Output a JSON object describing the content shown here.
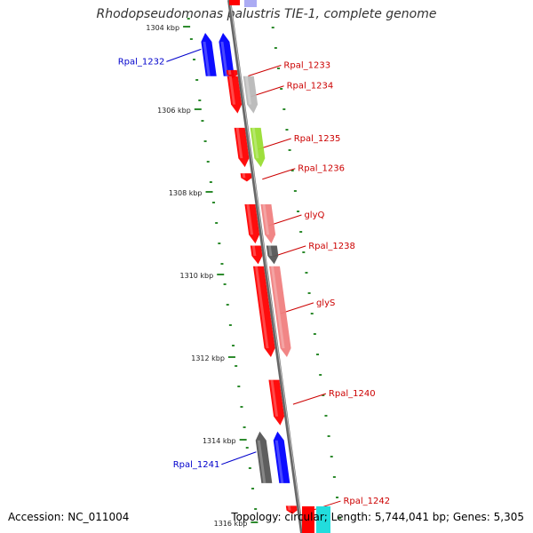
{
  "title": "Rhodopseudomonas palustris TIE-1, complete genome",
  "footer": {
    "accession": "Accession: NC_011004",
    "summary": "Topology: circular; Length: 5,744,041 bp; Genes: 5,305"
  },
  "colors": {
    "backbone": "#888888",
    "tick": "#2e8b2e",
    "forward_label": "#0000cc",
    "reverse_label": "#cc0000",
    "red": "#ff0000",
    "pink": "#f08080",
    "blue": "#0000ff",
    "gray": "#555555",
    "lightgray": "#b8b8b8",
    "green": "#99dd33",
    "cyan": "#22dddd",
    "lavender": "#8888ee"
  },
  "scale": {
    "start_kbp": 1304,
    "end_kbp": 1316,
    "step_kbp": 2,
    "unit": "kbp"
  },
  "scale_labels": [
    "1304 kbp",
    "1306 kbp",
    "1308 kbp",
    "1310 kbp",
    "1312 kbp",
    "1314 kbp",
    "1316 kbp"
  ],
  "genes": [
    {
      "id": "Rpal_1232",
      "label": "Rpal_1232",
      "strand": "+",
      "start_kbp": 1304.15,
      "end_kbp": 1305.2,
      "lane": "outer",
      "color": "blue",
      "show_label": true
    },
    {
      "id": "Rpal_1232b",
      "label": "",
      "strand": "+",
      "start_kbp": 1304.15,
      "end_kbp": 1305.2,
      "lane": "inner",
      "color": "blue",
      "show_label": false
    },
    {
      "id": "Rpal_1233",
      "label": "Rpal_1233",
      "strand": "-",
      "start_kbp": 1305.05,
      "end_kbp": 1305.25,
      "lane": "inner",
      "color": "red",
      "show_label": true
    },
    {
      "id": "Rpal_1234",
      "label": "Rpal_1234",
      "strand": "-",
      "start_kbp": 1305.2,
      "end_kbp": 1306.1,
      "lane": "inner",
      "color": "red",
      "show_label": true
    },
    {
      "id": "Rpal_1234b",
      "label": "",
      "strand": "-",
      "start_kbp": 1305.2,
      "end_kbp": 1306.1,
      "lane": "outer",
      "color": "lightgray",
      "show_label": false
    },
    {
      "id": "Rpal_1235",
      "label": "Rpal_1235",
      "strand": "-",
      "start_kbp": 1306.45,
      "end_kbp": 1307.4,
      "lane": "inner",
      "color": "red",
      "show_label": true
    },
    {
      "id": "Rpal_1235b",
      "label": "",
      "strand": "-",
      "start_kbp": 1306.45,
      "end_kbp": 1307.4,
      "lane": "outer",
      "color": "green",
      "show_label": false
    },
    {
      "id": "Rpal_1236",
      "label": "Rpal_1236",
      "strand": "-",
      "start_kbp": 1307.55,
      "end_kbp": 1307.75,
      "lane": "inner",
      "color": "red",
      "show_label": true
    },
    {
      "id": "glyQ",
      "label": "glyQ",
      "strand": "-",
      "start_kbp": 1308.3,
      "end_kbp": 1309.25,
      "lane": "inner",
      "color": "red",
      "show_label": true
    },
    {
      "id": "glyQb",
      "label": "",
      "strand": "-",
      "start_kbp": 1308.3,
      "end_kbp": 1309.25,
      "lane": "outer",
      "color": "pink",
      "show_label": false
    },
    {
      "id": "Rpal_1238",
      "label": "Rpal_1238",
      "strand": "-",
      "start_kbp": 1309.3,
      "end_kbp": 1309.75,
      "lane": "inner",
      "color": "red",
      "show_label": true
    },
    {
      "id": "Rpal_1238b",
      "label": "",
      "strand": "-",
      "start_kbp": 1309.3,
      "end_kbp": 1309.75,
      "lane": "outer",
      "color": "gray",
      "show_label": false
    },
    {
      "id": "glyS",
      "label": "glyS",
      "strand": "-",
      "start_kbp": 1309.8,
      "end_kbp": 1312.0,
      "lane": "inner",
      "color": "red",
      "show_label": true
    },
    {
      "id": "glySb",
      "label": "",
      "strand": "-",
      "start_kbp": 1309.8,
      "end_kbp": 1312.0,
      "lane": "outer",
      "color": "pink",
      "show_label": false
    },
    {
      "id": "Rpal_1240",
      "label": "Rpal_1240",
      "strand": "-",
      "start_kbp": 1312.55,
      "end_kbp": 1313.65,
      "lane": "inner",
      "color": "red",
      "show_label": true
    },
    {
      "id": "Rpal_1241",
      "label": "Rpal_1241",
      "strand": "+",
      "start_kbp": 1313.8,
      "end_kbp": 1315.05,
      "lane": "outer",
      "color": "gray",
      "show_label": true
    },
    {
      "id": "Rpal_1241b",
      "label": "",
      "strand": "+",
      "start_kbp": 1313.8,
      "end_kbp": 1315.05,
      "lane": "inner",
      "color": "blue",
      "show_label": false
    },
    {
      "id": "Rpal_1242",
      "label": "Rpal_1242",
      "strand": "-",
      "start_kbp": 1315.6,
      "end_kbp": 1315.8,
      "lane": "inner",
      "color": "red",
      "show_label": true
    }
  ]
}
